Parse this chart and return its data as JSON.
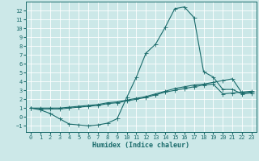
{
  "xlabel": "Humidex (Indice chaleur)",
  "bg_color": "#cce8e8",
  "grid_color": "#ffffff",
  "line_color": "#1a6b6b",
  "xlim": [
    -0.5,
    23.5
  ],
  "ylim": [
    -1.7,
    13.0
  ],
  "xticks": [
    0,
    1,
    2,
    3,
    4,
    5,
    6,
    7,
    8,
    9,
    10,
    11,
    12,
    13,
    14,
    15,
    16,
    17,
    18,
    19,
    20,
    21,
    22,
    23
  ],
  "yticks": [
    -1,
    0,
    1,
    2,
    3,
    4,
    5,
    6,
    7,
    8,
    9,
    10,
    11,
    12
  ],
  "curve_main_x": [
    0,
    1,
    2,
    3,
    4,
    5,
    6,
    7,
    8,
    9,
    10,
    11,
    12,
    13,
    14,
    15,
    16,
    17,
    18,
    19,
    20,
    21,
    22,
    23
  ],
  "curve_main_y": [
    1.0,
    0.8,
    0.4,
    -0.2,
    -0.8,
    -0.9,
    -1.0,
    -0.9,
    -0.7,
    -0.2,
    2.2,
    4.5,
    7.2,
    8.2,
    10.1,
    12.2,
    12.4,
    11.2,
    5.1,
    4.5,
    3.1,
    3.1,
    2.6,
    2.7
  ],
  "curve_upper_x": [
    0,
    1,
    2,
    3,
    4,
    5,
    6,
    7,
    8,
    9,
    10,
    11,
    12,
    13,
    14,
    15,
    16,
    17,
    18,
    19,
    20,
    21,
    22,
    23
  ],
  "curve_upper_y": [
    1.0,
    1.0,
    1.0,
    1.0,
    1.1,
    1.2,
    1.3,
    1.4,
    1.6,
    1.7,
    1.9,
    2.1,
    2.3,
    2.6,
    2.9,
    3.2,
    3.4,
    3.6,
    3.7,
    3.9,
    4.1,
    4.3,
    2.7,
    2.8
  ],
  "curve_lower_x": [
    0,
    1,
    2,
    3,
    4,
    5,
    6,
    7,
    8,
    9,
    10,
    11,
    12,
    13,
    14,
    15,
    16,
    17,
    18,
    19,
    20,
    21,
    22,
    23
  ],
  "curve_lower_y": [
    1.0,
    0.9,
    0.9,
    0.9,
    1.0,
    1.1,
    1.2,
    1.3,
    1.5,
    1.6,
    1.8,
    2.0,
    2.2,
    2.5,
    2.8,
    3.0,
    3.2,
    3.4,
    3.6,
    3.7,
    2.6,
    2.7,
    2.8,
    2.9
  ],
  "tick_fontsize": 5,
  "xlabel_fontsize": 6,
  "marker_size": 1.8,
  "linewidth": 0.8
}
